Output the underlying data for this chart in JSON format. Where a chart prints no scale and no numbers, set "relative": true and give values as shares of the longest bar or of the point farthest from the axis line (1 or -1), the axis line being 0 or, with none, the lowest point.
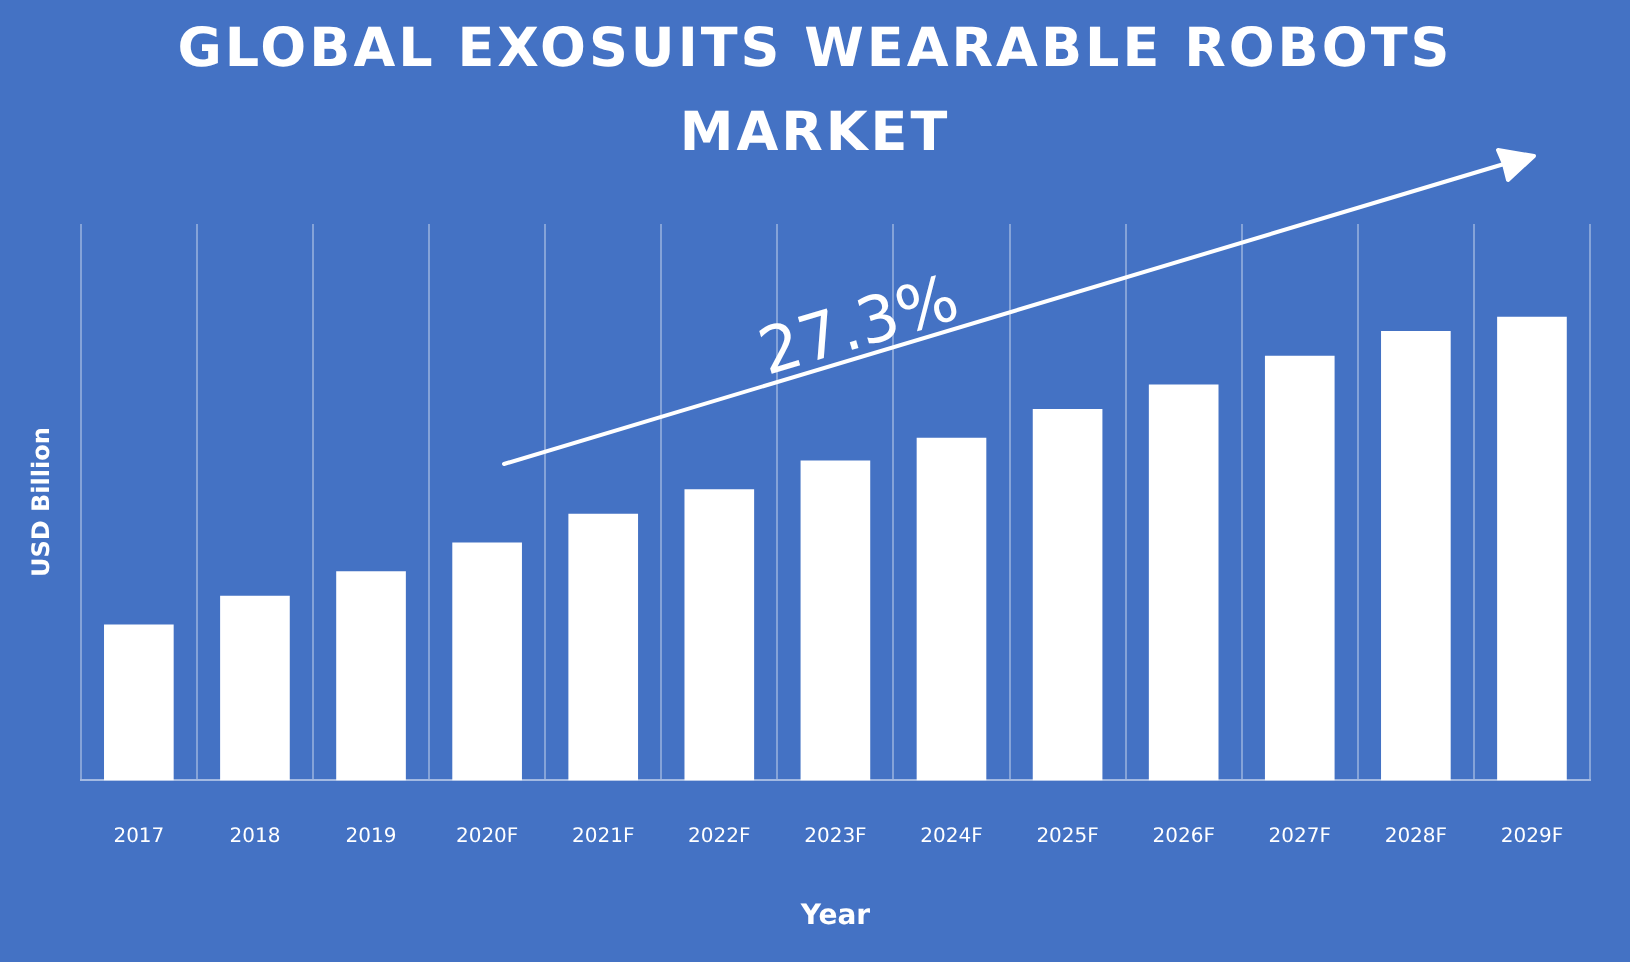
{
  "chart_data": {
    "type": "bar",
    "title": "GLOBAL EXOSUITS WEARABLE ROBOTS MARKET",
    "xlabel": "Year",
    "ylabel": "USD Billion",
    "categories": [
      "2017",
      "2018",
      "2019",
      "2020F",
      "2021F",
      "2022F",
      "2023F",
      "2024F",
      "2025F",
      "2026F",
      "2027F",
      "2028F",
      "2029F"
    ],
    "values": [
      0.336,
      0.398,
      0.451,
      0.513,
      0.575,
      0.628,
      0.69,
      0.739,
      0.801,
      0.854,
      0.916,
      0.969,
      1
    ],
    "color": "#ffffff",
    "relative": true,
    "grid": "x",
    "annotations": [
      "27.3%"
    ]
  }
}
